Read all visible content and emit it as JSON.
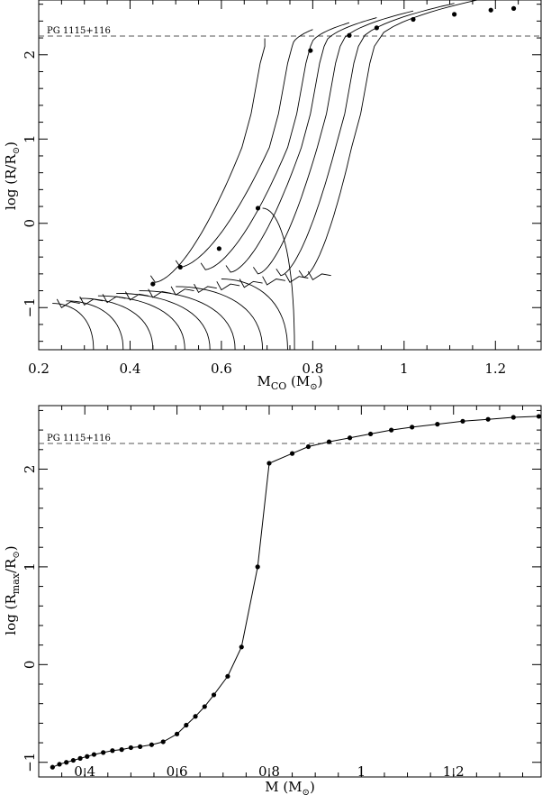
{
  "chart_data": [
    {
      "type": "line",
      "xlabel": "M_CO (M_⊙)",
      "xlabel_parts": {
        "main": "M",
        "sub": "CO",
        "rest": " (M",
        "sun": "⊙",
        "end": ")"
      },
      "ylabel_parts": {
        "main": "log  (R/R",
        "sun": "⊙",
        "end": ")"
      },
      "xlim": [
        0.2,
        1.3
      ],
      "ylim": [
        -1.5,
        2.65
      ],
      "xticks": [
        0.2,
        0.4,
        0.6,
        0.8,
        1.0,
        1.2
      ],
      "xtick_labels": [
        "0.2",
        "0.4",
        "0.6",
        "0.8",
        "1",
        "1.2"
      ],
      "yticks": [
        -1,
        0,
        1,
        2
      ],
      "ytick_labels": [
        "−1",
        "0",
        "1",
        "2"
      ],
      "reference_line": {
        "y": 2.28,
        "label": "PG 1115+116",
        "style": "dashed"
      },
      "tracks_climbing": [
        {
          "base": [
            0.455,
            -0.7
          ],
          "mid": [
            0.69,
            0.18
          ],
          "jump_x": 0.685,
          "top_x": 0.695
        },
        {
          "base": [
            0.51,
            -0.52
          ],
          "mid": [
            0.7,
            0.0
          ],
          "jump_x": 0.745,
          "top_x": 0.8
        },
        {
          "base": [
            0.565,
            -0.55
          ],
          "mid": [
            0.74,
            0.0
          ],
          "jump_x": 0.785,
          "top_x": 0.88
        },
        {
          "base": [
            0.62,
            -0.58
          ],
          "mid": [
            0.77,
            0.0
          ],
          "jump_x": 0.815,
          "top_x": 0.94
        },
        {
          "base": [
            0.68,
            -0.6
          ],
          "mid": [
            0.81,
            0.0
          ],
          "jump_x": 0.85,
          "top_x": 1.02
        },
        {
          "base": [
            0.73,
            -0.62
          ],
          "mid": [
            0.85,
            0.0
          ],
          "jump_x": 0.89,
          "top_x": 1.11
        },
        {
          "base": [
            0.78,
            -0.64
          ],
          "mid": [
            0.88,
            0.0
          ],
          "jump_x": 0.925,
          "top_x": 1.24
        }
      ],
      "tracks_descending": [
        {
          "x_start": 0.23,
          "y_start": -0.95,
          "x_end": 0.32,
          "y_end": -1.5
        },
        {
          "x_start": 0.26,
          "y_start": -0.92,
          "x_end": 0.385,
          "y_end": -1.5
        },
        {
          "x_start": 0.29,
          "y_start": -0.89,
          "x_end": 0.45,
          "y_end": -1.5
        },
        {
          "x_start": 0.33,
          "y_start": -0.86,
          "x_end": 0.52,
          "y_end": -1.5
        },
        {
          "x_start": 0.37,
          "y_start": -0.83,
          "x_end": 0.575,
          "y_end": -1.5
        },
        {
          "x_start": 0.42,
          "y_start": -0.8,
          "x_end": 0.63,
          "y_end": -1.5
        },
        {
          "x_start": 0.5,
          "y_start": -0.75,
          "x_end": 0.69,
          "y_end": -1.5
        },
        {
          "x_start": 0.6,
          "y_start": -0.66,
          "x_end": 0.745,
          "y_end": -1.5
        },
        {
          "x_start": 0.69,
          "y_start": 0.18,
          "x_end": 0.76,
          "y_end": -1.5
        }
      ],
      "markers": [
        {
          "x": 0.45,
          "y": -0.72
        },
        {
          "x": 0.51,
          "y": -0.52
        },
        {
          "x": 0.595,
          "y": -0.3
        },
        {
          "x": 0.68,
          "y": 0.18
        },
        {
          "x": 0.795,
          "y": 2.05
        },
        {
          "x": 0.88,
          "y": 2.23
        },
        {
          "x": 0.94,
          "y": 2.32
        },
        {
          "x": 1.02,
          "y": 2.42
        },
        {
          "x": 1.11,
          "y": 2.48
        },
        {
          "x": 1.19,
          "y": 2.53
        },
        {
          "x": 1.24,
          "y": 2.55
        }
      ]
    },
    {
      "type": "line",
      "xlabel_parts": {
        "main": "M",
        "rest": "  (M",
        "sun": "⊙",
        "end": ")"
      },
      "ylabel_parts": {
        "main": "log  (R",
        "sub": "max",
        "mid": "/R",
        "sun": "⊙",
        "end": ")"
      },
      "xlim": [
        0.3,
        1.39
      ],
      "ylim": [
        -1.15,
        2.65
      ],
      "xticks": [
        0.4,
        0.6,
        0.8,
        1.0,
        1.2
      ],
      "xtick_labels": [
        "0.4",
        "0.6",
        "0.8",
        "1",
        "1.2"
      ],
      "yticks": [
        -1,
        0,
        1,
        2
      ],
      "ytick_labels": [
        "−1",
        "0",
        "1",
        "2"
      ],
      "reference_line": {
        "y": 2.27,
        "label": "PG 1115+116",
        "style": "dashed"
      },
      "x": [
        0.33,
        0.345,
        0.36,
        0.375,
        0.39,
        0.405,
        0.42,
        0.44,
        0.46,
        0.48,
        0.5,
        0.52,
        0.545,
        0.57,
        0.6,
        0.62,
        0.64,
        0.66,
        0.68,
        0.71,
        0.74,
        0.775,
        0.8,
        0.85,
        0.885,
        0.93,
        0.975,
        1.02,
        1.065,
        1.11,
        1.165,
        1.22,
        1.275,
        1.33,
        1.385
      ],
      "y": [
        -1.05,
        -1.02,
        -1.0,
        -0.98,
        -0.96,
        -0.94,
        -0.92,
        -0.9,
        -0.88,
        -0.87,
        -0.85,
        -0.84,
        -0.82,
        -0.79,
        -0.71,
        -0.62,
        -0.53,
        -0.43,
        -0.31,
        -0.12,
        0.18,
        1.0,
        2.06,
        2.16,
        2.23,
        2.28,
        2.32,
        2.36,
        2.4,
        2.43,
        2.46,
        2.49,
        2.51,
        2.53,
        2.54
      ]
    }
  ]
}
